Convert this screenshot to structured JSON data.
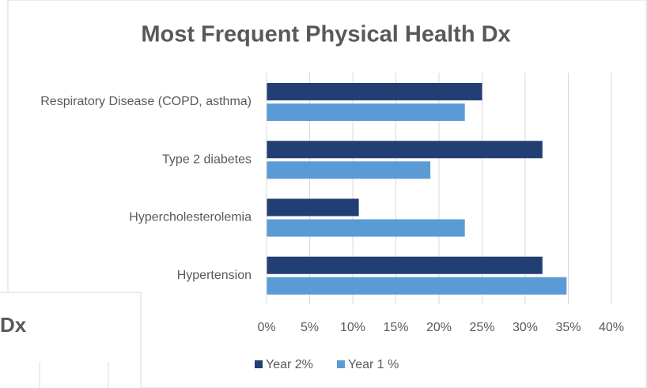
{
  "chart_data": {
    "type": "bar",
    "orientation": "horizontal",
    "title": "Most Frequent Physical Health Dx",
    "categories": [
      "Respiratory Disease (COPD, asthma)",
      "Type 2 diabetes",
      "Hypercholesterolemia",
      "Hypertension"
    ],
    "series": [
      {
        "name": "Year 2%",
        "color": "#223f73",
        "values": [
          25,
          32,
          10.7,
          32
        ]
      },
      {
        "name": "Year 1 %",
        "color": "#5b9bd5",
        "values": [
          23,
          19,
          23,
          34.8
        ]
      }
    ],
    "xlim": [
      0,
      40
    ],
    "xticks": [
      {
        "value": 0,
        "label": "0%"
      },
      {
        "value": 5,
        "label": "5%"
      },
      {
        "value": 10,
        "label": "10%"
      },
      {
        "value": 15,
        "label": "15%"
      },
      {
        "value": 20,
        "label": "20%"
      },
      {
        "value": 25,
        "label": "25%"
      },
      {
        "value": 30,
        "label": "30%"
      },
      {
        "value": 35,
        "label": "35%"
      },
      {
        "value": 40,
        "label": "40%"
      }
    ],
    "grid": true,
    "legend": "bottom"
  },
  "background_chart": {
    "title_fragment": "Dx"
  }
}
